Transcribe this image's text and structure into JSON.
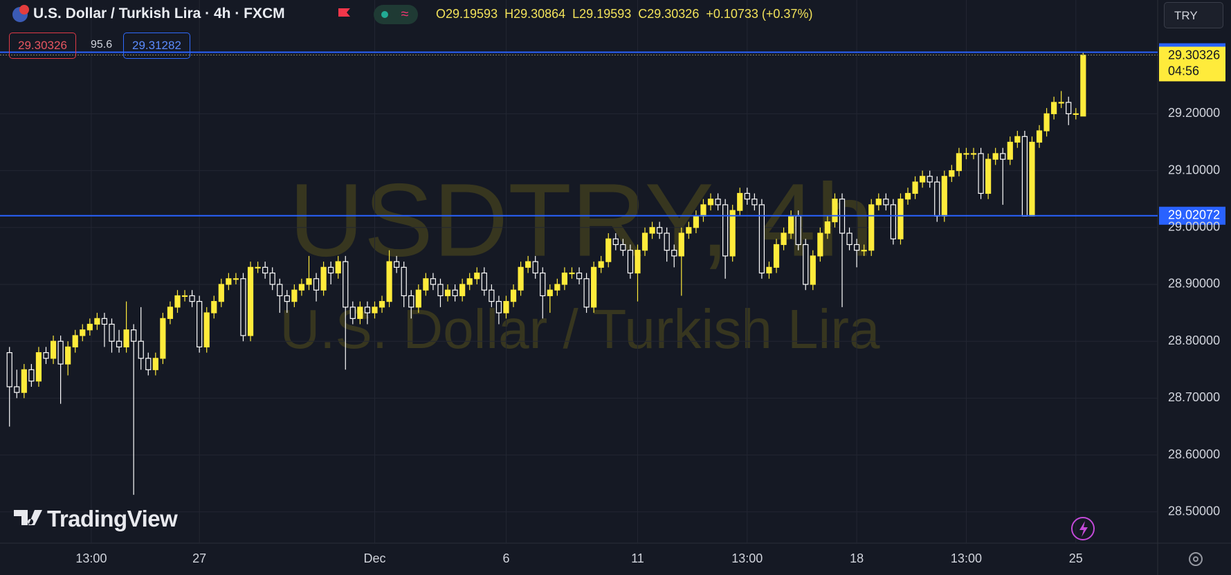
{
  "header": {
    "title": "U.S. Dollar / Turkish Lira · 4h · FXCM",
    "ohlc": [
      "O29.19593",
      "H29.30864",
      "L29.19593",
      "C29.30326",
      "+0.10733 (+0.37%)"
    ],
    "currency": "TRY"
  },
  "trade": {
    "sell": "29.30326",
    "spread": "95.6",
    "buy": "29.31282"
  },
  "watermark": {
    "symbol": "USDTRY, 4h",
    "name": "U.S. Dollar / Turkish Lira"
  },
  "logo": "TradingView",
  "chart_data": {
    "type": "candlestick",
    "up_color": "#ffeb3b",
    "down_color": "#ffffff",
    "candles": [
      [
        28.78,
        28.79,
        28.65,
        28.72
      ],
      [
        28.72,
        28.75,
        28.7,
        28.71
      ],
      [
        28.71,
        28.76,
        28.7,
        28.75
      ],
      [
        28.75,
        28.76,
        28.72,
        28.73
      ],
      [
        28.73,
        28.79,
        28.72,
        28.78
      ],
      [
        28.78,
        28.79,
        28.76,
        28.77
      ],
      [
        28.77,
        28.81,
        28.76,
        28.8
      ],
      [
        28.8,
        28.81,
        28.69,
        28.76
      ],
      [
        28.76,
        28.8,
        28.74,
        28.79
      ],
      [
        28.79,
        28.82,
        28.78,
        28.81
      ],
      [
        28.81,
        28.83,
        28.8,
        28.82
      ],
      [
        28.82,
        28.84,
        28.81,
        28.83
      ],
      [
        28.83,
        28.85,
        28.82,
        28.84
      ],
      [
        28.84,
        28.85,
        28.79,
        28.83
      ],
      [
        28.83,
        28.84,
        28.78,
        28.8
      ],
      [
        28.8,
        28.82,
        28.78,
        28.79
      ],
      [
        28.79,
        28.87,
        28.78,
        28.82
      ],
      [
        28.82,
        28.83,
        28.53,
        28.8
      ],
      [
        28.8,
        28.86,
        28.75,
        28.77
      ],
      [
        28.77,
        28.78,
        28.74,
        28.75
      ],
      [
        28.75,
        28.78,
        28.74,
        28.77
      ],
      [
        28.77,
        28.85,
        28.76,
        28.84
      ],
      [
        28.84,
        28.87,
        28.83,
        28.86
      ],
      [
        28.86,
        28.89,
        28.85,
        28.88
      ],
      [
        28.88,
        28.89,
        28.87,
        28.88
      ],
      [
        28.88,
        28.89,
        28.86,
        28.87
      ],
      [
        28.87,
        28.88,
        28.78,
        28.79
      ],
      [
        28.79,
        28.86,
        28.78,
        28.85
      ],
      [
        28.85,
        28.88,
        28.84,
        28.87
      ],
      [
        28.87,
        28.91,
        28.86,
        28.9
      ],
      [
        28.9,
        28.92,
        28.89,
        28.91
      ],
      [
        28.91,
        28.92,
        28.9,
        28.91
      ],
      [
        28.91,
        28.92,
        28.8,
        28.81
      ],
      [
        28.81,
        28.94,
        28.8,
        28.93
      ],
      [
        28.93,
        28.94,
        28.92,
        28.93
      ],
      [
        28.93,
        28.94,
        28.91,
        28.92
      ],
      [
        28.92,
        28.93,
        28.89,
        28.9
      ],
      [
        28.9,
        28.91,
        28.85,
        28.88
      ],
      [
        28.88,
        28.89,
        28.85,
        28.87
      ],
      [
        28.87,
        28.9,
        28.86,
        28.89
      ],
      [
        28.89,
        28.91,
        28.88,
        28.9
      ],
      [
        28.9,
        28.95,
        28.89,
        28.91
      ],
      [
        28.91,
        28.92,
        28.87,
        28.89
      ],
      [
        28.89,
        28.94,
        28.88,
        28.93
      ],
      [
        28.93,
        28.94,
        28.9,
        28.92
      ],
      [
        28.92,
        28.95,
        28.91,
        28.94
      ],
      [
        28.94,
        28.95,
        28.75,
        28.86
      ],
      [
        28.86,
        28.87,
        28.83,
        28.84
      ],
      [
        28.84,
        28.87,
        28.83,
        28.86
      ],
      [
        28.86,
        28.87,
        28.83,
        28.85
      ],
      [
        28.85,
        28.87,
        28.84,
        28.86
      ],
      [
        28.86,
        28.88,
        28.85,
        28.87
      ],
      [
        28.87,
        28.96,
        28.86,
        28.94
      ],
      [
        28.94,
        28.95,
        28.92,
        28.93
      ],
      [
        28.93,
        28.94,
        28.86,
        28.88
      ],
      [
        28.88,
        28.89,
        28.84,
        28.86
      ],
      [
        28.86,
        28.9,
        28.85,
        28.89
      ],
      [
        28.89,
        28.92,
        28.88,
        28.91
      ],
      [
        28.91,
        28.92,
        28.89,
        28.9
      ],
      [
        28.9,
        28.91,
        28.86,
        28.88
      ],
      [
        28.88,
        28.9,
        28.87,
        28.89
      ],
      [
        28.89,
        28.9,
        28.87,
        28.88
      ],
      [
        28.88,
        28.91,
        28.87,
        28.9
      ],
      [
        28.9,
        28.92,
        28.89,
        28.91
      ],
      [
        28.91,
        28.93,
        28.9,
        28.92
      ],
      [
        28.92,
        28.93,
        28.88,
        28.89
      ],
      [
        28.89,
        28.9,
        28.86,
        28.87
      ],
      [
        28.87,
        28.88,
        28.83,
        28.85
      ],
      [
        28.85,
        28.88,
        28.84,
        28.87
      ],
      [
        28.87,
        28.9,
        28.86,
        28.89
      ],
      [
        28.89,
        28.94,
        28.88,
        28.93
      ],
      [
        28.93,
        28.95,
        28.92,
        28.94
      ],
      [
        28.94,
        28.95,
        28.91,
        28.92
      ],
      [
        28.92,
        28.93,
        28.84,
        28.88
      ],
      [
        28.88,
        28.9,
        28.85,
        28.89
      ],
      [
        28.89,
        28.91,
        28.88,
        28.9
      ],
      [
        28.9,
        28.93,
        28.89,
        28.92
      ],
      [
        28.92,
        28.93,
        28.91,
        28.92
      ],
      [
        28.92,
        28.93,
        28.9,
        28.91
      ],
      [
        28.91,
        28.92,
        28.85,
        28.86
      ],
      [
        28.86,
        28.94,
        28.85,
        28.93
      ],
      [
        28.93,
        28.95,
        28.92,
        28.94
      ],
      [
        28.94,
        28.99,
        28.93,
        28.98
      ],
      [
        28.98,
        28.99,
        28.96,
        28.97
      ],
      [
        28.97,
        28.98,
        28.95,
        28.96
      ],
      [
        28.96,
        28.97,
        28.91,
        28.92
      ],
      [
        28.92,
        28.97,
        28.87,
        28.96
      ],
      [
        28.96,
        29.0,
        28.95,
        28.99
      ],
      [
        28.99,
        29.01,
        28.98,
        29.0
      ],
      [
        29.0,
        29.01,
        28.98,
        28.99
      ],
      [
        28.99,
        29.0,
        28.94,
        28.96
      ],
      [
        28.96,
        28.97,
        28.93,
        28.95
      ],
      [
        28.95,
        29.0,
        28.88,
        28.99
      ],
      [
        28.99,
        29.01,
        28.98,
        29.0
      ],
      [
        29.0,
        29.03,
        28.99,
        29.02
      ],
      [
        29.02,
        29.05,
        29.01,
        29.04
      ],
      [
        29.04,
        29.06,
        29.03,
        29.05
      ],
      [
        29.05,
        29.06,
        29.03,
        29.04
      ],
      [
        29.04,
        29.05,
        28.91,
        28.95
      ],
      [
        28.95,
        29.04,
        28.94,
        29.03
      ],
      [
        29.03,
        29.07,
        29.02,
        29.06
      ],
      [
        29.06,
        29.07,
        29.04,
        29.05
      ],
      [
        29.05,
        29.06,
        29.03,
        29.04
      ],
      [
        29.04,
        29.05,
        28.91,
        28.92
      ],
      [
        28.92,
        28.94,
        28.91,
        28.93
      ],
      [
        28.93,
        28.98,
        28.92,
        28.97
      ],
      [
        28.97,
        29.0,
        28.96,
        28.99
      ],
      [
        28.99,
        29.03,
        28.98,
        29.02
      ],
      [
        29.02,
        29.03,
        28.96,
        28.97
      ],
      [
        28.97,
        28.98,
        28.89,
        28.9
      ],
      [
        28.9,
        28.96,
        28.89,
        28.95
      ],
      [
        28.95,
        29.0,
        28.94,
        28.99
      ],
      [
        28.99,
        29.02,
        28.98,
        29.01
      ],
      [
        29.01,
        29.06,
        29.0,
        29.05
      ],
      [
        29.05,
        29.06,
        28.86,
        28.99
      ],
      [
        28.99,
        29.0,
        28.96,
        28.97
      ],
      [
        28.97,
        28.98,
        28.93,
        28.96
      ],
      [
        28.96,
        28.97,
        28.95,
        28.96
      ],
      [
        28.96,
        29.05,
        28.95,
        29.04
      ],
      [
        29.04,
        29.06,
        29.03,
        29.05
      ],
      [
        29.05,
        29.06,
        29.03,
        29.04
      ],
      [
        29.04,
        29.05,
        28.97,
        28.98
      ],
      [
        28.98,
        29.06,
        28.97,
        29.05
      ],
      [
        29.05,
        29.07,
        29.04,
        29.06
      ],
      [
        29.06,
        29.09,
        29.05,
        29.08
      ],
      [
        29.08,
        29.1,
        29.07,
        29.09
      ],
      [
        29.09,
        29.1,
        29.07,
        29.08
      ],
      [
        29.08,
        29.09,
        29.01,
        29.02
      ],
      [
        29.02,
        29.1,
        29.01,
        29.09
      ],
      [
        29.09,
        29.11,
        29.08,
        29.1
      ],
      [
        29.1,
        29.14,
        29.09,
        29.13
      ],
      [
        29.13,
        29.14,
        29.12,
        29.13
      ],
      [
        29.13,
        29.14,
        29.12,
        29.13
      ],
      [
        29.13,
        29.14,
        29.05,
        29.06
      ],
      [
        29.06,
        29.13,
        29.05,
        29.12
      ],
      [
        29.12,
        29.14,
        29.11,
        29.13
      ],
      [
        29.13,
        29.14,
        29.04,
        29.12
      ],
      [
        29.12,
        29.16,
        29.11,
        29.15
      ],
      [
        29.15,
        29.17,
        29.14,
        29.16
      ],
      [
        29.16,
        29.17,
        29.02,
        29.02
      ],
      [
        29.02,
        29.16,
        29.02,
        29.15
      ],
      [
        29.15,
        29.18,
        29.14,
        29.17
      ],
      [
        29.17,
        29.21,
        29.16,
        29.2
      ],
      [
        29.2,
        29.23,
        29.19,
        29.22
      ],
      [
        29.22,
        29.24,
        29.21,
        29.22
      ],
      [
        29.22,
        29.23,
        29.18,
        29.2
      ],
      [
        29.2,
        29.21,
        29.19,
        29.2
      ],
      [
        29.19593,
        29.30864,
        29.19593,
        29.30326
      ]
    ],
    "xlim": [
      -1.3,
      157.2
    ],
    "xticks": [
      {
        "value": 11.2,
        "label": "13:00"
      },
      {
        "value": 26,
        "label": "27"
      },
      {
        "value": 50,
        "label": "Dec"
      },
      {
        "value": 68,
        "label": "6"
      },
      {
        "value": 86,
        "label": "11"
      },
      {
        "value": 101,
        "label": "13:00"
      },
      {
        "value": 116,
        "label": "18"
      },
      {
        "value": 131,
        "label": "13:00"
      },
      {
        "value": 146,
        "label": "25"
      }
    ],
    "ylim": [
      28.445,
      29.4
    ],
    "yticks": [
      {
        "value": 28.5,
        "label": "28.50000"
      },
      {
        "value": 28.6,
        "label": "28.60000"
      },
      {
        "value": 28.7,
        "label": "28.70000"
      },
      {
        "value": 28.8,
        "label": "28.80000"
      },
      {
        "value": 28.9,
        "label": "28.90000"
      },
      {
        "value": 29.0,
        "label": "29.00000"
      },
      {
        "value": 29.1,
        "label": "29.10000"
      },
      {
        "value": 29.2,
        "label": "29.20000"
      }
    ],
    "grid": true,
    "price_lines": [
      {
        "value": 29.30809,
        "color": "#2962ff"
      },
      {
        "value": 29.02072,
        "color": "#2962ff"
      }
    ],
    "last_price": {
      "value": 29.30326,
      "countdown": "04:56",
      "color": "#ffeb3b"
    }
  }
}
